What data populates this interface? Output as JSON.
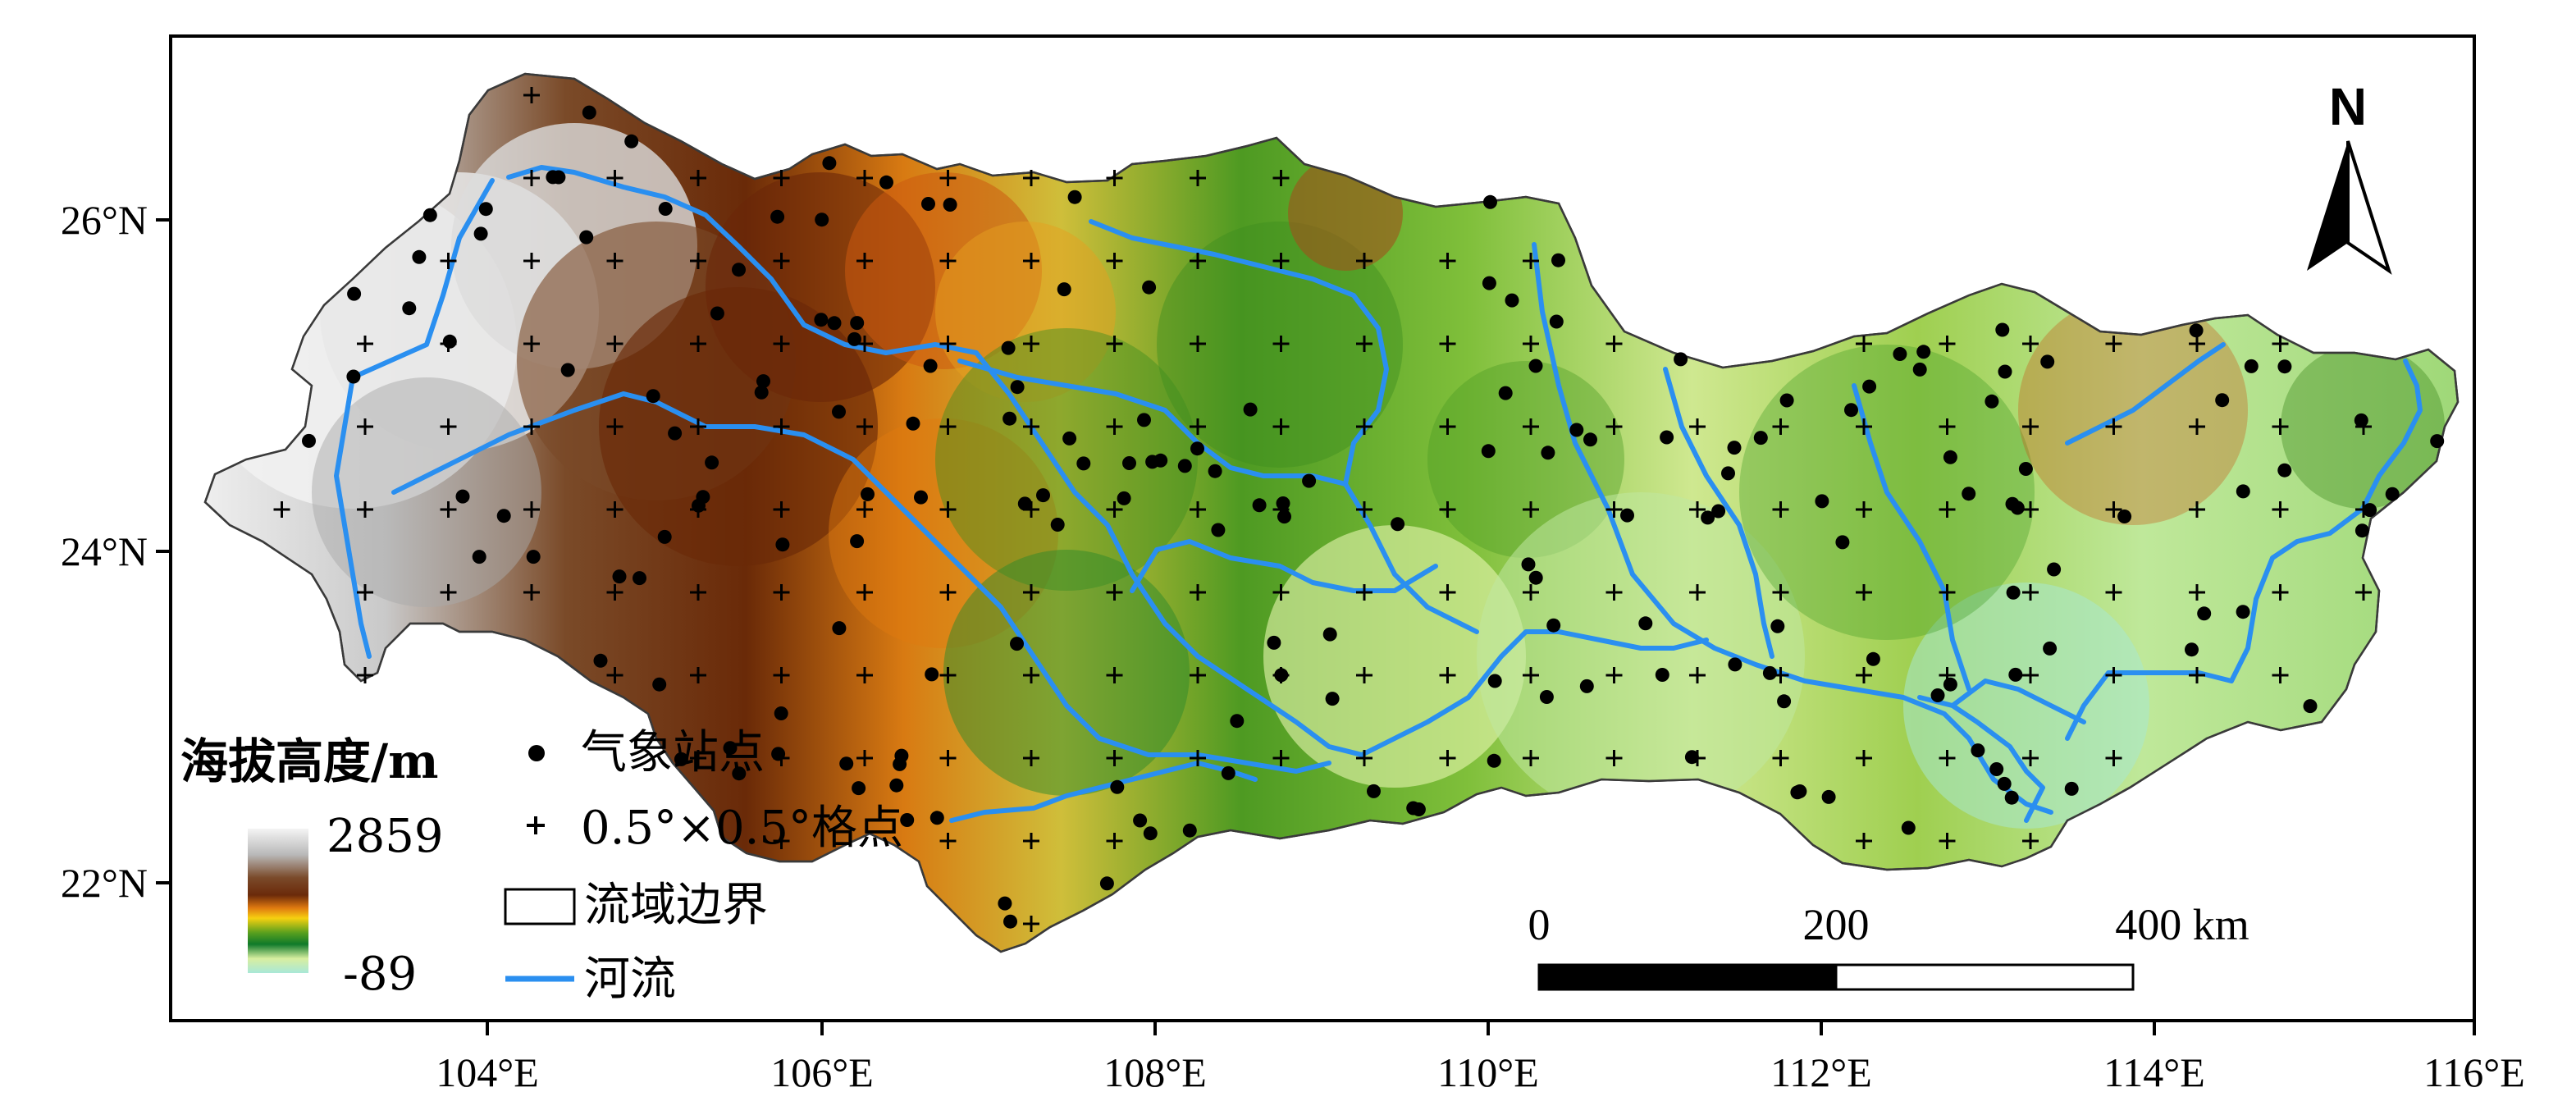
{
  "map": {
    "lon_labels": [
      "104°E",
      "106°E",
      "108°E",
      "110°E",
      "112°E",
      "114°E",
      "116°E"
    ],
    "lat_labels": [
      "26°N",
      "24°N",
      "22°N"
    ],
    "colors": {
      "frame": "#000000",
      "river": "#2a8ff0",
      "boundary": "#3a3a3a",
      "station": "#000000",
      "grid_point": "#000000"
    }
  },
  "legend": {
    "elevation_title": "海拔高度/m",
    "elevation_max": "2859",
    "elevation_min": "-89",
    "elevation_ramp": [
      "#f4f4f4",
      "#b9b9b9",
      "#7a4a2a",
      "#6b2a0a",
      "#e07a10",
      "#f6d010",
      "#5aa01e",
      "#0f7a2a",
      "#d8eea0",
      "#a8e8d8"
    ],
    "station_label": "气象站点",
    "grid_label": "0.5°×0.5°格点",
    "boundary_label": "流域边界",
    "river_label": "河流"
  },
  "scale_bar": {
    "labels": [
      "0",
      "200",
      "400 km"
    ]
  },
  "north_arrow": {
    "label": "N"
  }
}
